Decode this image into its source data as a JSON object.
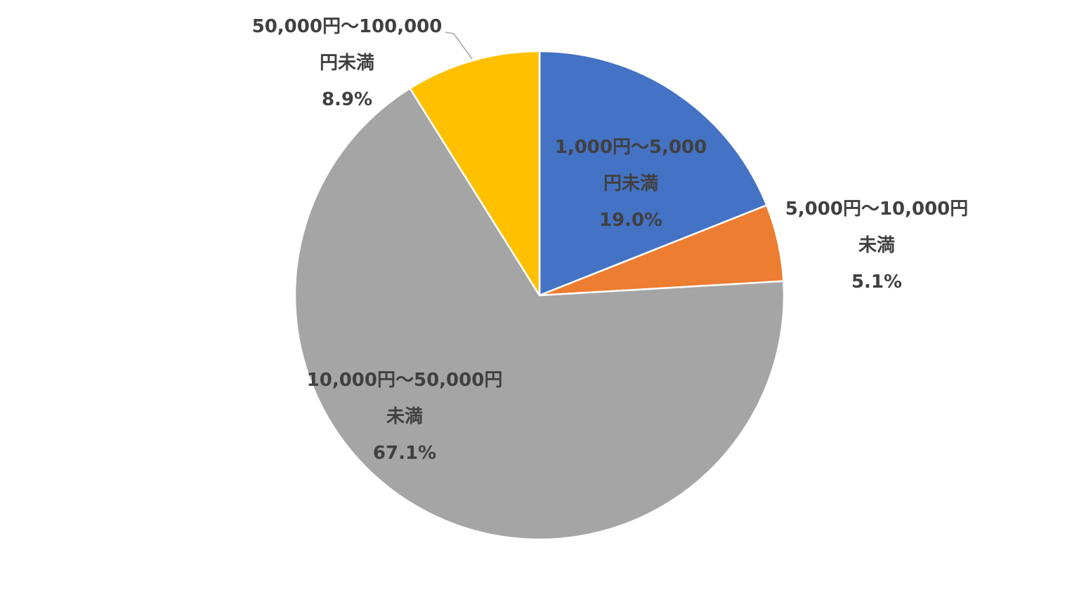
{
  "chart_data": {
    "type": "pie",
    "start_angle_deg": 0,
    "direction": "clockwise",
    "slices": [
      {
        "label": "1,000円〜5,000円未満",
        "label_lines": [
          "1,000円〜5,000",
          "円未満"
        ],
        "value": 19.0,
        "value_label": "19.0%",
        "color": "#4472C4"
      },
      {
        "label": "5,000円〜10,000円未満",
        "label_lines": [
          "5,000円〜10,000円",
          "未満"
        ],
        "value": 5.1,
        "value_label": "5.1%",
        "color": "#ED7D31"
      },
      {
        "label": "10,000円〜50,000円未満",
        "label_lines": [
          "10,000円〜50,000円",
          "未満"
        ],
        "value": 67.1,
        "value_label": "67.1%",
        "color": "#A5A5A5"
      },
      {
        "label": "50,000円〜100,000円未満",
        "label_lines": [
          "50,000円〜100,000",
          "円未満"
        ],
        "value": 8.9,
        "value_label": "8.9%",
        "color": "#FFC000"
      }
    ],
    "label_color": "#404040",
    "legend": "none",
    "title": ""
  }
}
